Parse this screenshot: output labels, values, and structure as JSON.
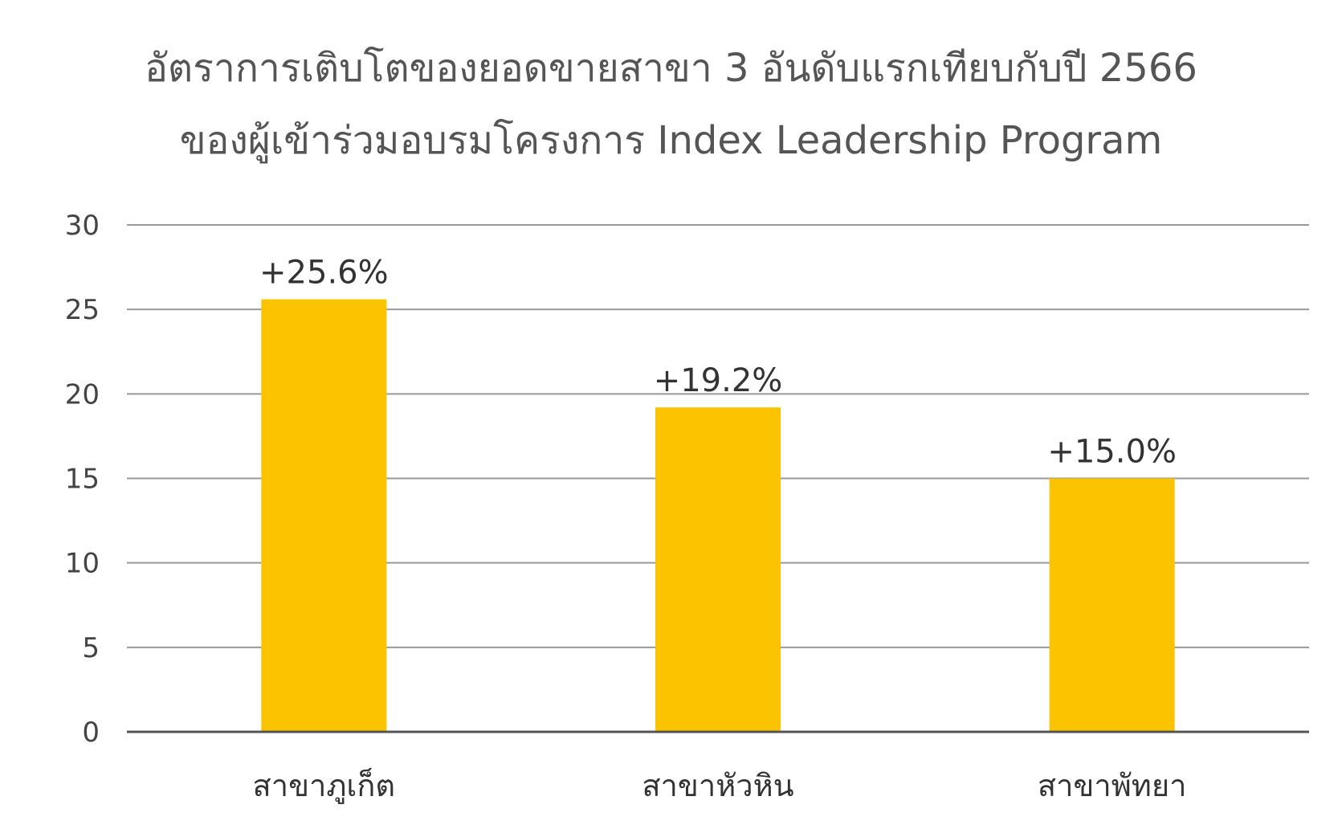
{
  "chart_data": {
    "type": "bar",
    "title_lines": [
      "อัตราการเติบโตของยอดขายสาขา 3 อันดับแรกเทียบกับปี 2566",
      "ของผู้เข้าร่วมอบรมโครงการ Index Leadership Program"
    ],
    "categories": [
      "สาขาภูเก็ต",
      "สาขาหัวหิน",
      "สาขาพัทยา"
    ],
    "values": [
      25.6,
      19.2,
      15.0
    ],
    "data_labels": [
      "+25.6%",
      "+19.2%",
      "+15.0%"
    ],
    "ylim": [
      0,
      30
    ],
    "yticks": [
      "0",
      "5",
      "10",
      "15",
      "20",
      "25",
      "30"
    ],
    "xlabel": "",
    "ylabel": "",
    "grid": true,
    "legend": "none",
    "colors": {
      "bar": "#FCC300",
      "grid": "#9a9a9a",
      "axis": "#555555"
    }
  }
}
